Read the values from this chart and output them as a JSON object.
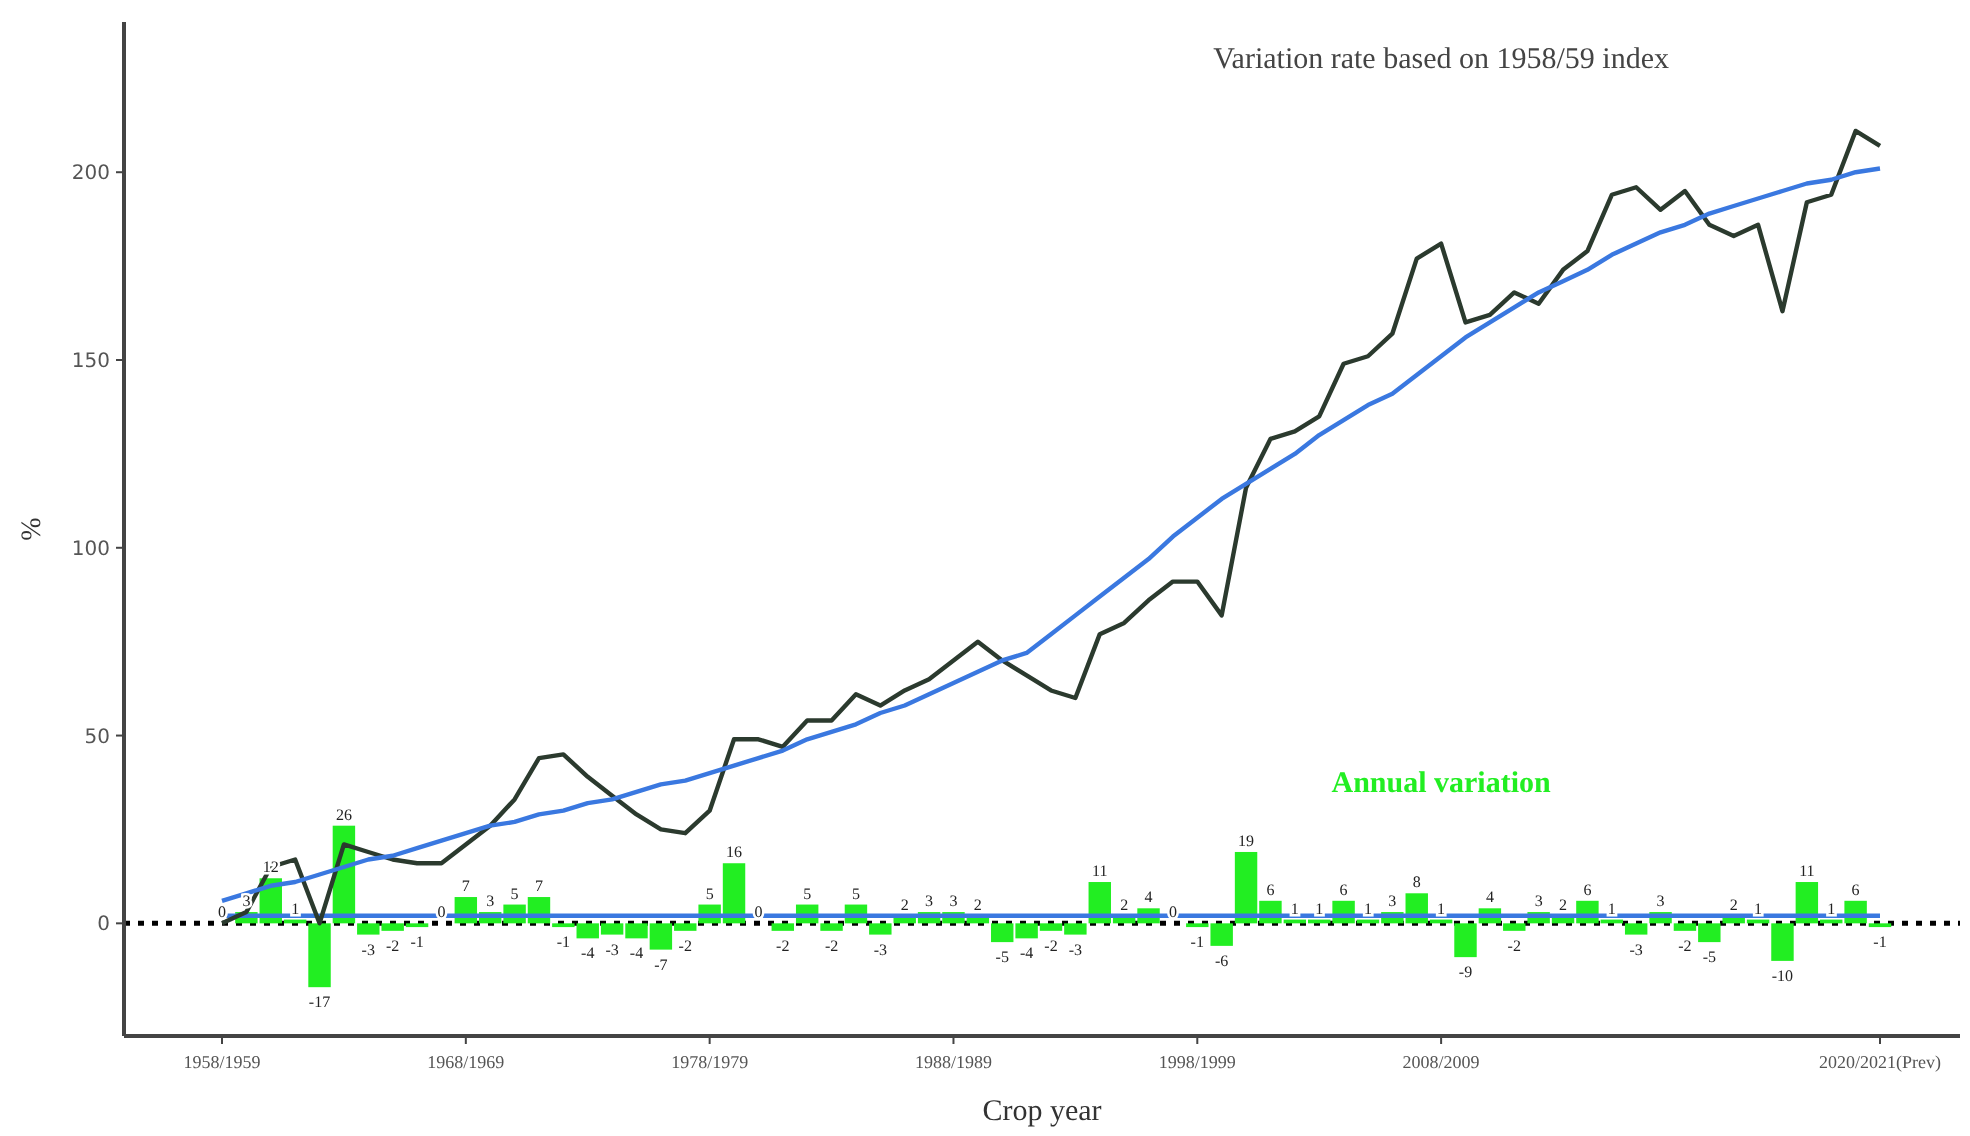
{
  "chart_data": {
    "type": "line",
    "title": "Variation rate based on 1958/59 index",
    "xlabel": "Crop year",
    "ylabel": "%",
    "categories": [
      "1958/1959",
      null,
      null,
      null,
      null,
      null,
      null,
      null,
      null,
      null,
      "1968/1969",
      null,
      null,
      null,
      null,
      null,
      null,
      null,
      null,
      null,
      "1978/1979",
      null,
      null,
      null,
      null,
      null,
      null,
      null,
      null,
      null,
      "1988/1989",
      null,
      null,
      null,
      null,
      null,
      null,
      null,
      null,
      null,
      "1998/1999",
      null,
      null,
      null,
      null,
      null,
      null,
      null,
      null,
      null,
      "2008/2009",
      null,
      null,
      null,
      null,
      null,
      null,
      null,
      null,
      null,
      null,
      null,
      null,
      null,
      null,
      null,
      null,
      null,
      "2020/2021(Prev)"
    ],
    "ylim": [
      -30,
      240
    ],
    "yticks": [
      0,
      50,
      100,
      150,
      200
    ],
    "grid": false,
    "ref_lines": [
      {
        "axis": "y",
        "value": 0,
        "color": "#000000",
        "line_style": "dotted"
      }
    ],
    "series": [
      {
        "name": "Annual variation",
        "type": "bar",
        "color": "#22ee22",
        "values": [
          0,
          3,
          12,
          1,
          -17,
          26,
          -3,
          -2,
          -1,
          0,
          7,
          3,
          5,
          7,
          -1,
          -4,
          -3,
          -4,
          -7,
          -2,
          5,
          16,
          0,
          -2,
          5,
          -2,
          5,
          -3,
          2,
          3,
          3,
          2,
          -5,
          -4,
          -2,
          -3,
          11,
          2,
          4,
          0,
          -1,
          -6,
          19,
          6,
          1,
          1,
          6,
          1,
          3,
          8,
          1,
          -9,
          4,
          -2,
          3,
          2,
          6,
          1,
          -3,
          3,
          -2,
          -5,
          2,
          1,
          -10,
          11,
          1,
          6,
          -1
        ],
        "value_labels": [
          "0",
          "3",
          "12",
          "1",
          "-17",
          "26",
          "-3",
          "-2",
          "-1",
          "0",
          "7",
          "3",
          "5",
          "7",
          "-1",
          "-4",
          "-3",
          "-4",
          "-7",
          "-2",
          "5",
          "16",
          "0",
          "-2",
          "5",
          "-2",
          "5",
          "-3",
          "2",
          "3",
          "3",
          "2",
          "-5",
          "-4",
          "-2",
          "-3",
          "11",
          "2",
          "4",
          "0",
          "-1",
          "-6",
          "19",
          "6",
          "1",
          "1",
          "6",
          "1",
          "3",
          "8",
          "1",
          "-9",
          "4",
          "-2",
          "3",
          "2",
          "6",
          "1",
          "-3",
          "3",
          "-2",
          "-5",
          "2",
          "1",
          "-10",
          "11",
          "1",
          "6",
          "-1"
        ]
      },
      {
        "type": "line",
        "color": "#3a78e0",
        "values": [
          2,
          2,
          2,
          2,
          2,
          2,
          2,
          2,
          2,
          2,
          2,
          2,
          2,
          2,
          2,
          2,
          2,
          2,
          2,
          2,
          2,
          2,
          2,
          2,
          2,
          2,
          2,
          2,
          2,
          2,
          2,
          2,
          2,
          2,
          2,
          2,
          2,
          2,
          2,
          2,
          2,
          2,
          2,
          2,
          2,
          2,
          2,
          2,
          2,
          2,
          2,
          2,
          2,
          2,
          2,
          2,
          2,
          2,
          2,
          2,
          2,
          2,
          2,
          2,
          2,
          2,
          2,
          2,
          2
        ]
      },
      {
        "color": "#2b3a2e",
        "values": [
          0,
          3,
          15,
          17,
          0,
          21,
          19,
          17,
          16,
          16,
          21,
          26,
          33,
          44,
          45,
          39,
          34,
          29,
          25,
          24,
          30,
          49,
          49,
          47,
          54,
          54,
          61,
          58,
          62,
          65,
          70,
          75,
          70,
          66,
          62,
          60,
          77,
          80,
          86,
          91,
          91,
          82,
          116,
          129,
          131,
          135,
          149,
          151,
          157,
          177,
          181,
          160,
          162,
          168,
          165,
          174,
          179,
          194,
          196,
          190,
          195,
          186,
          183,
          186,
          163,
          192,
          194,
          211,
          207
        ]
      },
      {
        "color": "#3a78e0",
        "values": [
          6,
          8,
          10,
          11,
          13,
          15,
          17,
          18,
          20,
          22,
          24,
          26,
          27,
          29,
          30,
          32,
          33,
          35,
          37,
          38,
          40,
          42,
          44,
          46,
          49,
          51,
          53,
          56,
          58,
          61,
          64,
          67,
          70,
          72,
          77,
          82,
          87,
          92,
          97,
          103,
          108,
          113,
          117,
          121,
          125,
          130,
          134,
          138,
          141,
          146,
          151,
          156,
          160,
          164,
          168,
          171,
          174,
          178,
          181,
          184,
          186,
          189,
          191,
          193,
          195,
          197,
          198,
          200,
          201
        ]
      }
    ]
  }
}
